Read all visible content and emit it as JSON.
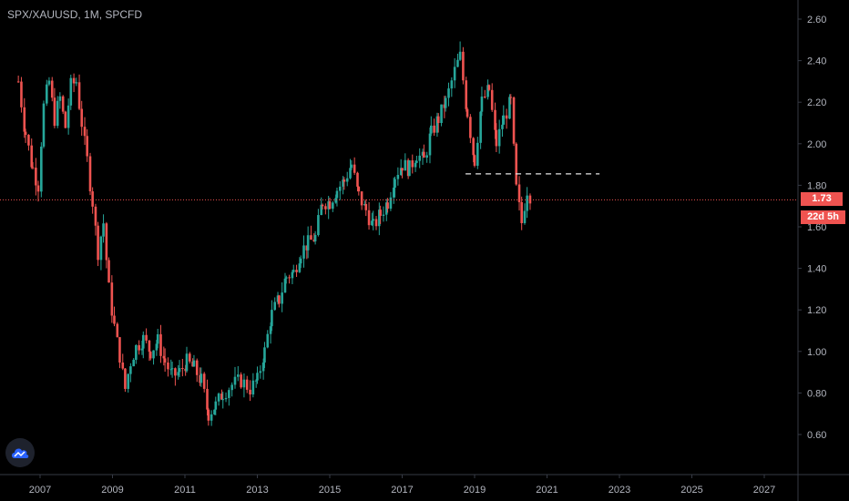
{
  "header": {
    "title": "SPX/XAUUSD, 1M, SPCFD"
  },
  "badges": {
    "last_price": "1.73",
    "countdown": "22d 5h"
  },
  "colors": {
    "up": "#26a69a",
    "down": "#ef5350",
    "background": "#000000",
    "axis_text": "#b2b5be",
    "line_level": "#e6e6e6"
  },
  "icons": {
    "logo": "cloud-logo-icon"
  },
  "chart_data": {
    "type": "candlestick",
    "title": "SPX/XAUUSD, 1M, SPCFD",
    "xlabel": "",
    "ylabel": "",
    "x_ticks": [
      "2007",
      "2009",
      "2011",
      "2013",
      "2015",
      "2017",
      "2019",
      "2021",
      "2023",
      "2025",
      "2027"
    ],
    "y_ticks": [
      "0.60",
      "0.80",
      "1.00",
      "1.20",
      "1.40",
      "1.60",
      "1.80",
      "2.00",
      "2.20",
      "2.40",
      "2.60"
    ],
    "xlim": [
      2006.3,
      2027.9
    ],
    "ylim": [
      0.5,
      2.67
    ],
    "grid": false,
    "last_price": 1.73,
    "horizontal_level": {
      "value": 1.855,
      "from": 2018.75,
      "to": 2022.45,
      "style": "dashed"
    },
    "series_close": [
      [
        2006.4,
        2.3
      ],
      [
        2006.6,
        2.05
      ],
      [
        2006.8,
        1.88
      ],
      [
        2006.95,
        1.8
      ],
      [
        2007.1,
        2.18
      ],
      [
        2007.25,
        2.3
      ],
      [
        2007.4,
        2.12
      ],
      [
        2007.55,
        2.22
      ],
      [
        2007.7,
        2.08
      ],
      [
        2007.85,
        2.28
      ],
      [
        2008.0,
        2.3
      ],
      [
        2008.15,
        2.1
      ],
      [
        2008.3,
        1.92
      ],
      [
        2008.45,
        1.72
      ],
      [
        2008.6,
        1.48
      ],
      [
        2008.75,
        1.62
      ],
      [
        2008.9,
        1.3
      ],
      [
        2009.05,
        1.12
      ],
      [
        2009.2,
        0.98
      ],
      [
        2009.35,
        0.82
      ],
      [
        2009.5,
        0.95
      ],
      [
        2009.65,
        1.02
      ],
      [
        2009.85,
        1.06
      ],
      [
        2010.05,
        1.0
      ],
      [
        2010.25,
        1.05
      ],
      [
        2010.45,
        0.95
      ],
      [
        2010.65,
        0.88
      ],
      [
        2010.85,
        0.9
      ],
      [
        2011.05,
        0.95
      ],
      [
        2011.25,
        0.92
      ],
      [
        2011.45,
        0.86
      ],
      [
        2011.65,
        0.7
      ],
      [
        2011.85,
        0.74
      ],
      [
        2012.05,
        0.8
      ],
      [
        2012.3,
        0.84
      ],
      [
        2012.55,
        0.86
      ],
      [
        2012.8,
        0.82
      ],
      [
        2013.0,
        0.86
      ],
      [
        2013.2,
        1.0
      ],
      [
        2013.4,
        1.18
      ],
      [
        2013.6,
        1.25
      ],
      [
        2013.8,
        1.36
      ],
      [
        2014.0,
        1.38
      ],
      [
        2014.2,
        1.48
      ],
      [
        2014.4,
        1.52
      ],
      [
        2014.6,
        1.55
      ],
      [
        2014.8,
        1.72
      ],
      [
        2015.0,
        1.72
      ],
      [
        2015.2,
        1.78
      ],
      [
        2015.4,
        1.82
      ],
      [
        2015.6,
        1.9
      ],
      [
        2015.8,
        1.75
      ],
      [
        2016.0,
        1.68
      ],
      [
        2016.2,
        1.6
      ],
      [
        2016.4,
        1.66
      ],
      [
        2016.6,
        1.72
      ],
      [
        2016.8,
        1.85
      ],
      [
        2017.0,
        1.9
      ],
      [
        2017.2,
        1.88
      ],
      [
        2017.4,
        1.95
      ],
      [
        2017.6,
        1.92
      ],
      [
        2017.8,
        2.05
      ],
      [
        2018.0,
        2.12
      ],
      [
        2018.2,
        2.2
      ],
      [
        2018.45,
        2.35
      ],
      [
        2018.6,
        2.42
      ],
      [
        2018.8,
        2.15
      ],
      [
        2019.0,
        1.92
      ],
      [
        2019.2,
        2.2
      ],
      [
        2019.4,
        2.26
      ],
      [
        2019.6,
        2.0
      ],
      [
        2019.8,
        2.12
      ],
      [
        2020.0,
        2.2
      ],
      [
        2020.15,
        1.78
      ],
      [
        2020.3,
        1.62
      ],
      [
        2020.45,
        1.78
      ],
      [
        2020.6,
        1.73
      ]
    ]
  }
}
